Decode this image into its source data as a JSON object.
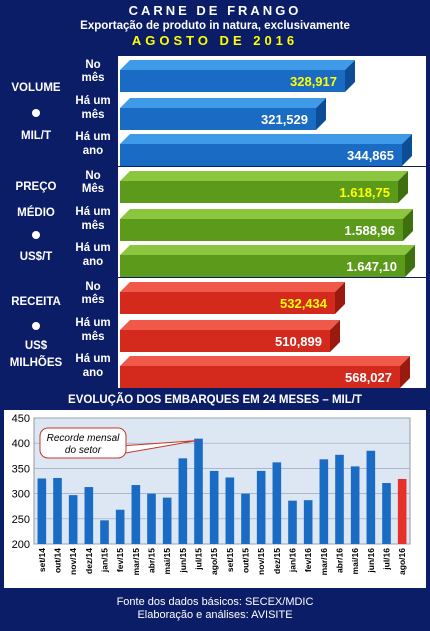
{
  "header": {
    "line1": "CARNE DE FRANGO",
    "line2": "Exportação de produto in natura, exclusivamente",
    "line3": "AGOSTO DE 2016"
  },
  "panels": [
    {
      "label_top": "VOLUME",
      "label_bottom": "MIL/T",
      "label_bottom2": "",
      "color": "#1a6bc4",
      "color_top": "#3f9ae8",
      "color_side": "#0d4d96",
      "rows": [
        {
          "cat1": "No",
          "cat2": "mês",
          "value": "328,917",
          "highlight": true
        },
        {
          "cat1": "Há um",
          "cat2": "mês",
          "value": "321,529",
          "highlight": false
        },
        {
          "cat1": "Há um",
          "cat2": "ano",
          "value": "344,865",
          "highlight": false
        }
      ]
    },
    {
      "label_top": "PREÇO",
      "label_mid": "MÉDIO",
      "label_bottom": "US$/T",
      "label_bottom2": "",
      "color": "#5c9a1c",
      "color_top": "#8cc63f",
      "color_side": "#3f7010",
      "rows": [
        {
          "cat1": "No",
          "cat2": "Mês",
          "value": "1.618,75",
          "highlight": true
        },
        {
          "cat1": "Há um",
          "cat2": "mês",
          "value": "1.588,96",
          "highlight": false
        },
        {
          "cat1": "Há um",
          "cat2": "ano",
          "value": "1.647,10",
          "highlight": false
        }
      ]
    },
    {
      "label_top": "RECEITA",
      "label_bottom": "US$",
      "label_bottom2": "MILHÕES",
      "color": "#d42a1e",
      "color_top": "#f0584a",
      "color_side": "#9a1a10",
      "rows": [
        {
          "cat1": "No",
          "cat2": "mês",
          "value": "532,434",
          "highlight": true
        },
        {
          "cat1": "Há um",
          "cat2": "mês",
          "value": "510,899",
          "highlight": false
        },
        {
          "cat1": "Há um",
          "cat2": "ano",
          "value": "568,027",
          "highlight": false
        }
      ]
    }
  ],
  "chart_title": "EVOLUÇÃO DOS EMBARQUES EM 24 MESES – MIL/T",
  "chart_data": {
    "type": "bar",
    "title": "EVOLUÇÃO DOS EMBARQUES EM 24 MESES – MIL/T",
    "categories": [
      "set/14",
      "out/14",
      "nov/14",
      "dez/14",
      "jan/15",
      "fev/15",
      "mar/15",
      "abr/15",
      "mai/15",
      "jun/15",
      "jul/15",
      "ago/15",
      "set/15",
      "out/15",
      "nov/15",
      "dez/15",
      "jan/16",
      "fev/16",
      "mar/16",
      "abr/16",
      "mai/16",
      "jun/16",
      "jul/16",
      "ago/16"
    ],
    "values": [
      330,
      331,
      297,
      313,
      247,
      268,
      317,
      300,
      292,
      370,
      409,
      345,
      332,
      300,
      345,
      362,
      286,
      287,
      368,
      377,
      354,
      385,
      321,
      329
    ],
    "ylim": [
      200,
      450
    ],
    "yticks": [
      200,
      250,
      300,
      350,
      400,
      450
    ],
    "grid": true,
    "bar_color": "#1a6bc4",
    "highlight_color": "#e8302a",
    "highlight_index": 23,
    "annotation": {
      "line1": "Recorde mensal",
      "line2": "do setor",
      "target_index": 10
    }
  },
  "footer": {
    "line1": "Fonte dos dados básicos: SECEX/MDIC",
    "line2": "Elaboração e análises: AVISITE"
  }
}
